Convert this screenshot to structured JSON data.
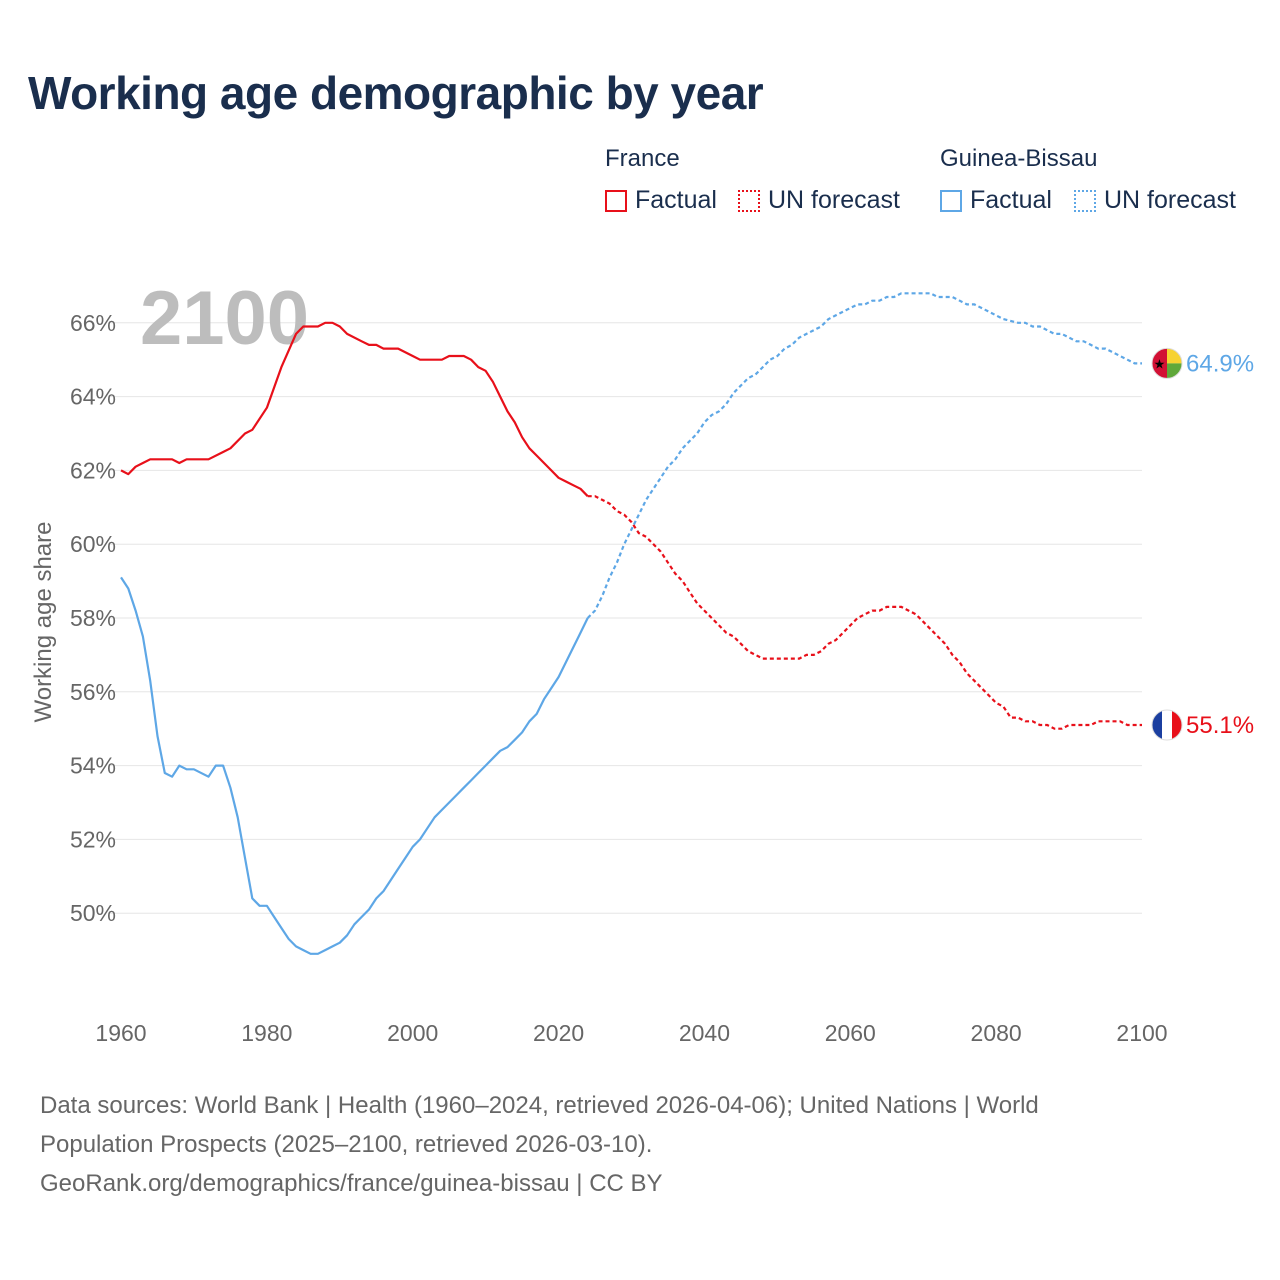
{
  "title": "Working age demographic by year",
  "legend": {
    "groups": [
      {
        "name": "France",
        "factual_label": "Factual",
        "forecast_label": "UN forecast",
        "color": "#e8101a"
      },
      {
        "name": "Guinea-Bissau",
        "factual_label": "Factual",
        "forecast_label": "UN forecast",
        "color": "#5ea7e6"
      }
    ]
  },
  "sources": {
    "line1": "Data sources: World Bank | Health (1960–2024, retrieved 2026-04-06); United Nations | World",
    "line2": "Population Prospects (2025–2100, retrieved 2026-03-10).",
    "line3": "GeoRank.org/demographics/france/guinea-bissau | CC BY"
  },
  "chart_data": {
    "type": "line",
    "title": "Working age demographic by year",
    "xlabel": "",
    "ylabel": "Working age share",
    "current_year": "2100",
    "xlim": [
      1960,
      2100
    ],
    "ylim": [
      48,
      68
    ],
    "x_ticks": [
      "1960",
      "1980",
      "2000",
      "2020",
      "2040",
      "2060",
      "2080",
      "2100"
    ],
    "y_ticks": [
      "50%",
      "52%",
      "54%",
      "56%",
      "58%",
      "60%",
      "62%",
      "64%",
      "66%"
    ],
    "forecast_start": 2024,
    "series": [
      {
        "name": "France",
        "color": "#e8101a",
        "end_label": "55.1%",
        "flag": "france-flag-icon",
        "points": [
          [
            1960,
            62.0
          ],
          [
            1961,
            61.9
          ],
          [
            1962,
            62.1
          ],
          [
            1963,
            62.2
          ],
          [
            1964,
            62.3
          ],
          [
            1965,
            62.3
          ],
          [
            1966,
            62.3
          ],
          [
            1967,
            62.3
          ],
          [
            1968,
            62.2
          ],
          [
            1969,
            62.3
          ],
          [
            1970,
            62.3
          ],
          [
            1972,
            62.3
          ],
          [
            1974,
            62.5
          ],
          [
            1975,
            62.6
          ],
          [
            1977,
            63.0
          ],
          [
            1978,
            63.1
          ],
          [
            1980,
            63.7
          ],
          [
            1982,
            64.8
          ],
          [
            1984,
            65.7
          ],
          [
            1985,
            65.9
          ],
          [
            1986,
            65.9
          ],
          [
            1987,
            65.9
          ],
          [
            1988,
            66.0
          ],
          [
            1989,
            66.0
          ],
          [
            1990,
            65.9
          ],
          [
            1991,
            65.7
          ],
          [
            1993,
            65.5
          ],
          [
            1994,
            65.4
          ],
          [
            1995,
            65.4
          ],
          [
            1996,
            65.3
          ],
          [
            1998,
            65.3
          ],
          [
            2000,
            65.1
          ],
          [
            2001,
            65.0
          ],
          [
            2003,
            65.0
          ],
          [
            2004,
            65.0
          ],
          [
            2005,
            65.1
          ],
          [
            2007,
            65.1
          ],
          [
            2008,
            65.0
          ],
          [
            2009,
            64.8
          ],
          [
            2010,
            64.7
          ],
          [
            2011,
            64.4
          ],
          [
            2012,
            64.0
          ],
          [
            2013,
            63.6
          ],
          [
            2014,
            63.3
          ],
          [
            2015,
            62.9
          ],
          [
            2016,
            62.6
          ],
          [
            2017,
            62.4
          ],
          [
            2018,
            62.2
          ],
          [
            2019,
            62.0
          ],
          [
            2020,
            61.8
          ],
          [
            2021,
            61.7
          ],
          [
            2022,
            61.6
          ],
          [
            2023,
            61.5
          ],
          [
            2024,
            61.3
          ],
          [
            2025,
            61.3
          ],
          [
            2026,
            61.2
          ],
          [
            2027,
            61.1
          ],
          [
            2028,
            60.9
          ],
          [
            2029,
            60.8
          ],
          [
            2030,
            60.6
          ],
          [
            2031,
            60.3
          ],
          [
            2032,
            60.2
          ],
          [
            2033,
            60.0
          ],
          [
            2034,
            59.8
          ],
          [
            2035,
            59.5
          ],
          [
            2036,
            59.2
          ],
          [
            2037,
            59.0
          ],
          [
            2038,
            58.7
          ],
          [
            2039,
            58.4
          ],
          [
            2040,
            58.2
          ],
          [
            2041,
            58.0
          ],
          [
            2042,
            57.8
          ],
          [
            2043,
            57.6
          ],
          [
            2044,
            57.5
          ],
          [
            2045,
            57.3
          ],
          [
            2046,
            57.1
          ],
          [
            2047,
            57.0
          ],
          [
            2048,
            56.9
          ],
          [
            2050,
            56.9
          ],
          [
            2052,
            56.9
          ],
          [
            2053,
            56.9
          ],
          [
            2054,
            57.0
          ],
          [
            2055,
            57.0
          ],
          [
            2056,
            57.1
          ],
          [
            2057,
            57.3
          ],
          [
            2058,
            57.4
          ],
          [
            2059,
            57.6
          ],
          [
            2060,
            57.8
          ],
          [
            2061,
            58.0
          ],
          [
            2062,
            58.1
          ],
          [
            2063,
            58.2
          ],
          [
            2064,
            58.2
          ],
          [
            2065,
            58.3
          ],
          [
            2066,
            58.3
          ],
          [
            2067,
            58.3
          ],
          [
            2068,
            58.2
          ],
          [
            2069,
            58.1
          ],
          [
            2070,
            57.9
          ],
          [
            2071,
            57.7
          ],
          [
            2072,
            57.5
          ],
          [
            2073,
            57.3
          ],
          [
            2074,
            57.0
          ],
          [
            2075,
            56.8
          ],
          [
            2076,
            56.5
          ],
          [
            2077,
            56.3
          ],
          [
            2078,
            56.1
          ],
          [
            2079,
            55.9
          ],
          [
            2080,
            55.7
          ],
          [
            2081,
            55.6
          ],
          [
            2082,
            55.3
          ],
          [
            2083,
            55.3
          ],
          [
            2084,
            55.2
          ],
          [
            2085,
            55.2
          ],
          [
            2086,
            55.1
          ],
          [
            2087,
            55.1
          ],
          [
            2088,
            55.0
          ],
          [
            2089,
            55.0
          ],
          [
            2090,
            55.1
          ],
          [
            2091,
            55.1
          ],
          [
            2093,
            55.1
          ],
          [
            2094,
            55.2
          ],
          [
            2095,
            55.2
          ],
          [
            2097,
            55.2
          ],
          [
            2098,
            55.1
          ],
          [
            2100,
            55.1
          ]
        ]
      },
      {
        "name": "Guinea-Bissau",
        "color": "#5ea7e6",
        "end_label": "64.9%",
        "flag": "guinea-bissau-flag-icon",
        "points": [
          [
            1960,
            59.1
          ],
          [
            1961,
            58.8
          ],
          [
            1962,
            58.2
          ],
          [
            1963,
            57.5
          ],
          [
            1964,
            56.3
          ],
          [
            1965,
            54.8
          ],
          [
            1966,
            53.8
          ],
          [
            1967,
            53.7
          ],
          [
            1968,
            54.0
          ],
          [
            1969,
            53.9
          ],
          [
            1970,
            53.9
          ],
          [
            1972,
            53.7
          ],
          [
            1973,
            54.0
          ],
          [
            1974,
            54.0
          ],
          [
            1975,
            53.4
          ],
          [
            1976,
            52.6
          ],
          [
            1977,
            51.5
          ],
          [
            1978,
            50.4
          ],
          [
            1979,
            50.2
          ],
          [
            1980,
            50.2
          ],
          [
            1981,
            49.9
          ],
          [
            1982,
            49.6
          ],
          [
            1983,
            49.3
          ],
          [
            1984,
            49.1
          ],
          [
            1985,
            49.0
          ],
          [
            1986,
            48.9
          ],
          [
            1987,
            48.9
          ],
          [
            1988,
            49.0
          ],
          [
            1989,
            49.1
          ],
          [
            1990,
            49.2
          ],
          [
            1991,
            49.4
          ],
          [
            1992,
            49.7
          ],
          [
            1993,
            49.9
          ],
          [
            1994,
            50.1
          ],
          [
            1995,
            50.4
          ],
          [
            1996,
            50.6
          ],
          [
            1997,
            50.9
          ],
          [
            1998,
            51.2
          ],
          [
            1999,
            51.5
          ],
          [
            2000,
            51.8
          ],
          [
            2001,
            52.0
          ],
          [
            2002,
            52.3
          ],
          [
            2003,
            52.6
          ],
          [
            2004,
            52.8
          ],
          [
            2005,
            53.0
          ],
          [
            2006,
            53.2
          ],
          [
            2007,
            53.4
          ],
          [
            2008,
            53.6
          ],
          [
            2009,
            53.8
          ],
          [
            2010,
            54.0
          ],
          [
            2011,
            54.2
          ],
          [
            2012,
            54.4
          ],
          [
            2013,
            54.5
          ],
          [
            2014,
            54.7
          ],
          [
            2015,
            54.9
          ],
          [
            2016,
            55.2
          ],
          [
            2017,
            55.4
          ],
          [
            2018,
            55.8
          ],
          [
            2019,
            56.1
          ],
          [
            2020,
            56.4
          ],
          [
            2021,
            56.8
          ],
          [
            2022,
            57.2
          ],
          [
            2023,
            57.6
          ],
          [
            2024,
            58.0
          ],
          [
            2025,
            58.2
          ],
          [
            2026,
            58.6
          ],
          [
            2027,
            59.1
          ],
          [
            2028,
            59.5
          ],
          [
            2029,
            60.0
          ],
          [
            2030,
            60.4
          ],
          [
            2031,
            60.8
          ],
          [
            2032,
            61.2
          ],
          [
            2033,
            61.5
          ],
          [
            2034,
            61.8
          ],
          [
            2035,
            62.1
          ],
          [
            2036,
            62.3
          ],
          [
            2037,
            62.6
          ],
          [
            2038,
            62.8
          ],
          [
            2039,
            63.0
          ],
          [
            2040,
            63.3
          ],
          [
            2041,
            63.5
          ],
          [
            2042,
            63.6
          ],
          [
            2043,
            63.8
          ],
          [
            2044,
            64.1
          ],
          [
            2045,
            64.3
          ],
          [
            2046,
            64.5
          ],
          [
            2047,
            64.6
          ],
          [
            2048,
            64.8
          ],
          [
            2049,
            65.0
          ],
          [
            2050,
            65.1
          ],
          [
            2051,
            65.3
          ],
          [
            2052,
            65.4
          ],
          [
            2053,
            65.6
          ],
          [
            2054,
            65.7
          ],
          [
            2055,
            65.8
          ],
          [
            2056,
            65.9
          ],
          [
            2057,
            66.1
          ],
          [
            2058,
            66.2
          ],
          [
            2059,
            66.3
          ],
          [
            2060,
            66.4
          ],
          [
            2061,
            66.5
          ],
          [
            2062,
            66.5
          ],
          [
            2063,
            66.6
          ],
          [
            2064,
            66.6
          ],
          [
            2065,
            66.7
          ],
          [
            2066,
            66.7
          ],
          [
            2067,
            66.8
          ],
          [
            2068,
            66.8
          ],
          [
            2070,
            66.8
          ],
          [
            2071,
            66.8
          ],
          [
            2072,
            66.7
          ],
          [
            2074,
            66.7
          ],
          [
            2075,
            66.6
          ],
          [
            2076,
            66.5
          ],
          [
            2077,
            66.5
          ],
          [
            2078,
            66.4
          ],
          [
            2079,
            66.3
          ],
          [
            2080,
            66.2
          ],
          [
            2081,
            66.1
          ],
          [
            2083,
            66.0
          ],
          [
            2084,
            66.0
          ],
          [
            2085,
            65.9
          ],
          [
            2086,
            65.9
          ],
          [
            2087,
            65.8
          ],
          [
            2088,
            65.7
          ],
          [
            2089,
            65.7
          ],
          [
            2090,
            65.6
          ],
          [
            2091,
            65.5
          ],
          [
            2092,
            65.5
          ],
          [
            2093,
            65.4
          ],
          [
            2094,
            65.3
          ],
          [
            2095,
            65.3
          ],
          [
            2096,
            65.2
          ],
          [
            2097,
            65.1
          ],
          [
            2098,
            65.0
          ],
          [
            2099,
            64.9
          ],
          [
            2100,
            64.9
          ]
        ]
      }
    ]
  }
}
